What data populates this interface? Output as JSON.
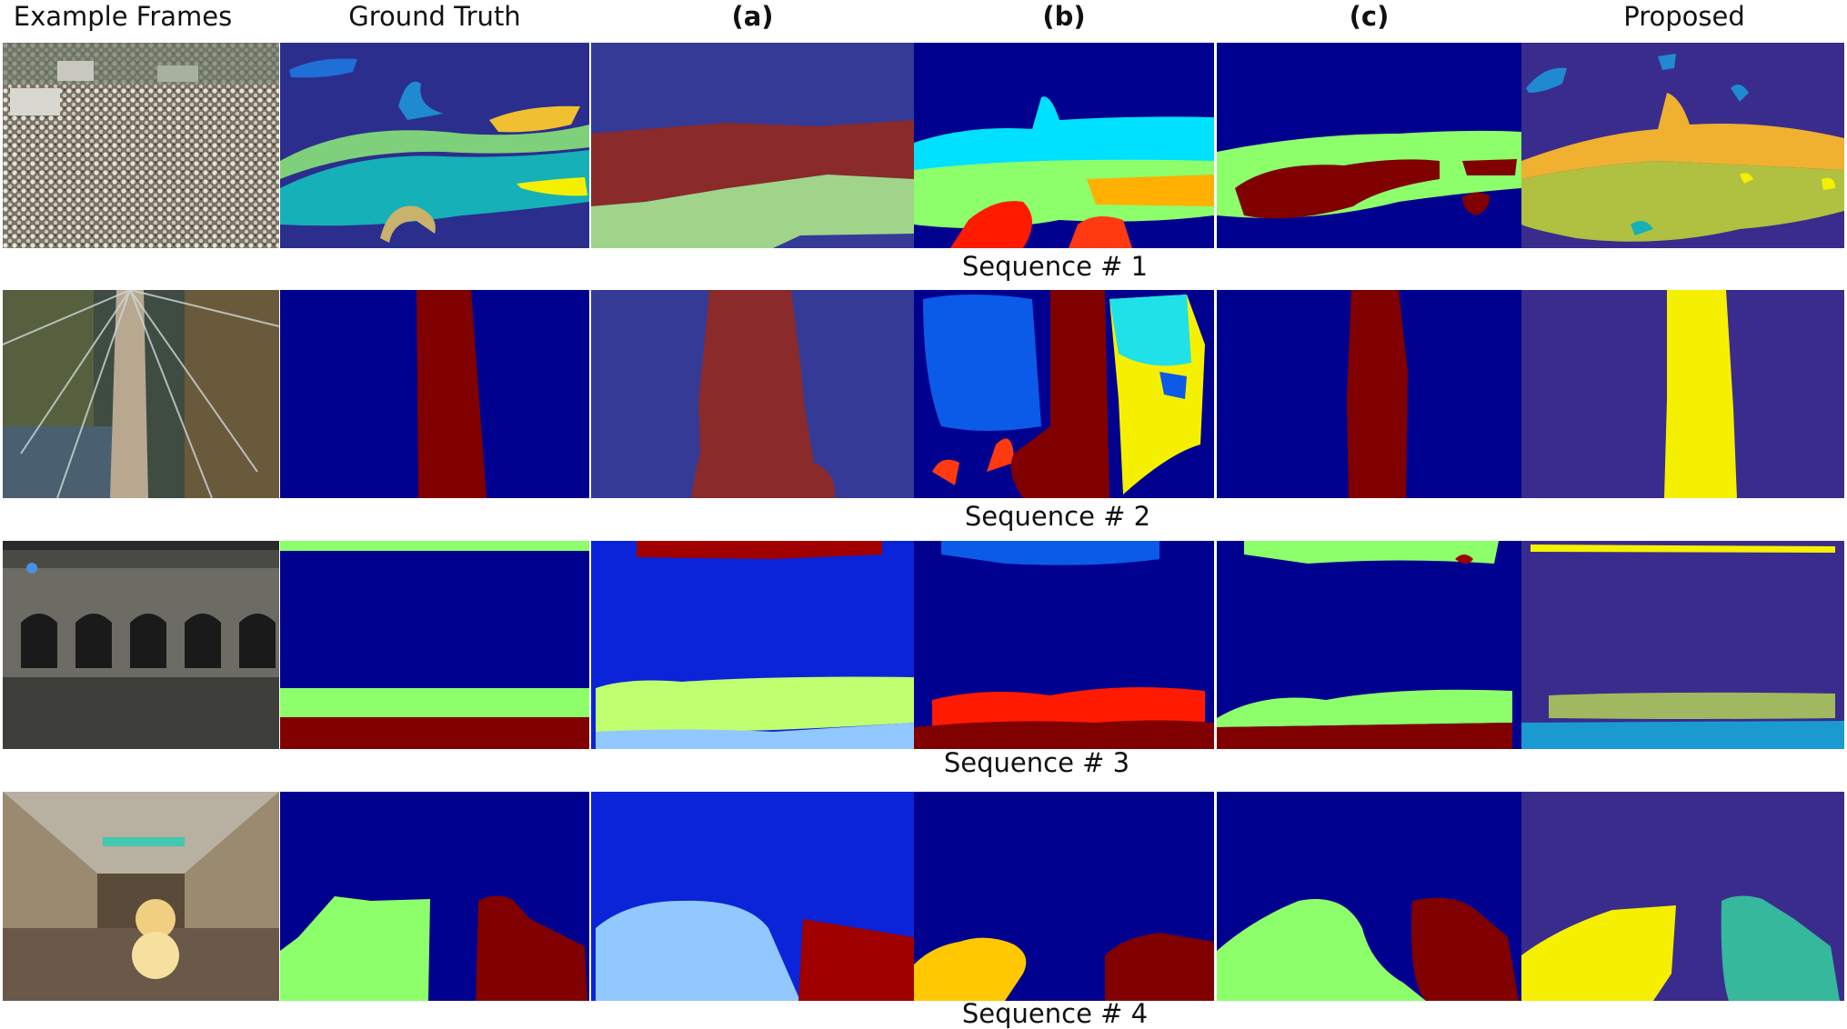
{
  "figure": {
    "columns": [
      {
        "label": "Example Frames",
        "bold": false
      },
      {
        "label": "Ground Truth",
        "bold": false
      },
      {
        "label": "(a)",
        "bold": true
      },
      {
        "label": "(b)",
        "bold": true
      },
      {
        "label": "(c)",
        "bold": true
      },
      {
        "label": "Proposed",
        "bold": false
      }
    ],
    "rows": [
      {
        "label": "Sequence # 1"
      },
      {
        "label": "Sequence # 2"
      },
      {
        "label": "Sequence # 3"
      },
      {
        "label": "Sequence # 4"
      }
    ],
    "colors": {
      "navy": "#00008f",
      "deep_blue": "#2b2e8c",
      "blue": "#0b24d8",
      "maroon": "#800000",
      "dark_red": "#8a2a2a",
      "light_green": "#8cff6a",
      "pale_green": "#a0d48a",
      "teal": "#16b0b8",
      "cyan": "#00e0ff",
      "sky": "#0070ff",
      "yellow": "#f5f000",
      "orange": "#ffb000",
      "olive": "#b0c040",
      "khaki": "#c8b26c",
      "red": "#ff1a00",
      "purple_bg": "#3a2c8c",
      "sea_green": "#36b89c",
      "light_blue": "#90c8ff"
    }
  }
}
